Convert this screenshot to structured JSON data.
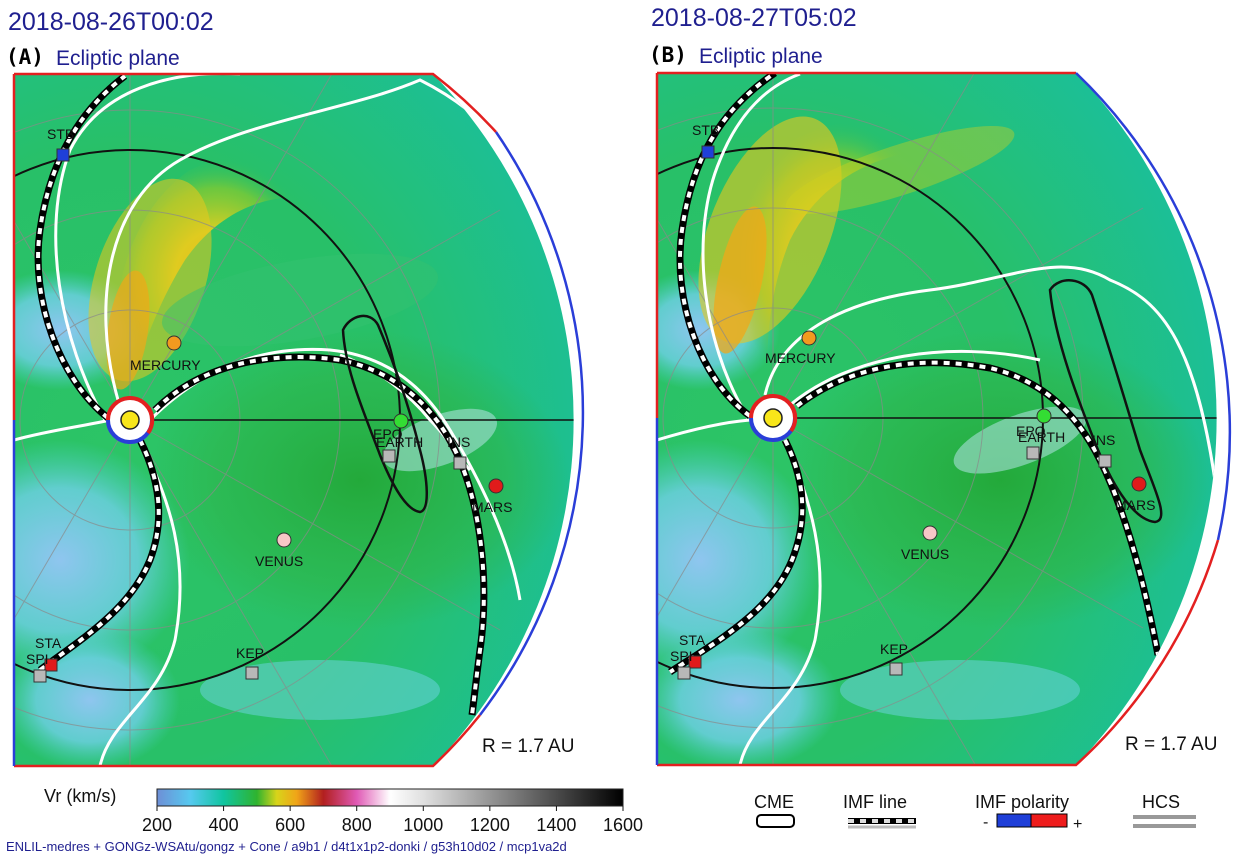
{
  "panels": [
    {
      "id": "A",
      "timestamp": "2018-08-26T00:02",
      "panel_label": "(A)",
      "plane": "Ecliptic plane",
      "radius_label": "R = 1.7 AU",
      "bodies": [
        {
          "name": "MERCURY",
          "type": "planet",
          "color": "#f29a1f"
        },
        {
          "name": "VENUS",
          "type": "planet",
          "color": "#f7c7c7"
        },
        {
          "name": "EARTH",
          "type": "planet",
          "color": "#33dd33"
        },
        {
          "name": "MARS",
          "type": "planet",
          "color": "#e01b1b"
        },
        {
          "name": "STB",
          "type": "spacecraft",
          "color": "#1f3fd8"
        },
        {
          "name": "STA",
          "type": "spacecraft",
          "color": "#e01b1b"
        },
        {
          "name": "SPI",
          "type": "spacecraft",
          "color": "#b8b8b8"
        },
        {
          "name": "KEP",
          "type": "spacecraft",
          "color": "#b8b8b8"
        },
        {
          "name": "INS",
          "type": "spacecraft",
          "color": "#b8b8b8"
        },
        {
          "name": "EPO",
          "type": "spacecraft",
          "color": "#b8b8b8"
        }
      ]
    },
    {
      "id": "B",
      "timestamp": "2018-08-27T05:02",
      "panel_label": "(B)",
      "plane": "Ecliptic plane",
      "radius_label": "R = 1.7 AU",
      "bodies": [
        {
          "name": "MERCURY",
          "type": "planet",
          "color": "#f29a1f"
        },
        {
          "name": "VENUS",
          "type": "planet",
          "color": "#f7c7c7"
        },
        {
          "name": "EARTH",
          "type": "planet",
          "color": "#33dd33"
        },
        {
          "name": "MARS",
          "type": "planet",
          "color": "#e01b1b"
        },
        {
          "name": "STB",
          "type": "spacecraft",
          "color": "#1f3fd8"
        },
        {
          "name": "STA",
          "type": "spacecraft",
          "color": "#e01b1b"
        },
        {
          "name": "SPI",
          "type": "spacecraft",
          "color": "#b8b8b8"
        },
        {
          "name": "KEP",
          "type": "spacecraft",
          "color": "#b8b8b8"
        },
        {
          "name": "INS",
          "type": "spacecraft",
          "color": "#b8b8b8"
        },
        {
          "name": "EPO",
          "type": "spacecraft",
          "color": "#b8b8b8"
        }
      ]
    }
  ],
  "colorbar": {
    "label": "Vr (km/s)",
    "min": 200,
    "max": 1600,
    "ticks": [
      "200",
      "400",
      "600",
      "800",
      "1000",
      "1200",
      "1400",
      "1600"
    ],
    "stops": [
      {
        "v": 200,
        "c": "#6e8fd6"
      },
      {
        "v": 300,
        "c": "#56c9ef"
      },
      {
        "v": 400,
        "c": "#10c5a0"
      },
      {
        "v": 500,
        "c": "#2fb32f"
      },
      {
        "v": 560,
        "c": "#d8d41a"
      },
      {
        "v": 620,
        "c": "#f0a418"
      },
      {
        "v": 700,
        "c": "#b21f1f"
      },
      {
        "v": 800,
        "c": "#e05ab5"
      },
      {
        "v": 900,
        "c": "#ffffff"
      },
      {
        "v": 1000,
        "c": "#e0e0e0"
      },
      {
        "v": 1600,
        "c": "#000000"
      }
    ]
  },
  "footer_text": "ENLIL-medres + GONGz-WSAtu/gongz + Cone / a9b1 / d4t1x1p2-donki / g53h10d02 / mcp1va2d",
  "legend": {
    "cme": "CME",
    "imf_line": "IMF line",
    "imf_polarity": "IMF polarity",
    "polarity_minus": "-",
    "polarity_plus": "+",
    "hcs": "HCS"
  },
  "colors": {
    "title_text": "#1f1f8f",
    "imf_positive": "#ee1c1c",
    "imf_negative": "#1f3fd8",
    "background_flow": "#1fc86b"
  },
  "chart_data": [
    {
      "type": "heatmap",
      "title": "2018-08-26T00:02",
      "subtitle": "(A) Ecliptic plane",
      "variable": "Vr (km/s)",
      "range": [
        200,
        1600
      ],
      "radius_au": 1.7
    },
    {
      "type": "heatmap",
      "title": "2018-08-27T05:02",
      "subtitle": "(B) Ecliptic plane",
      "variable": "Vr (km/s)",
      "range": [
        200,
        1600
      ],
      "radius_au": 1.7
    }
  ]
}
